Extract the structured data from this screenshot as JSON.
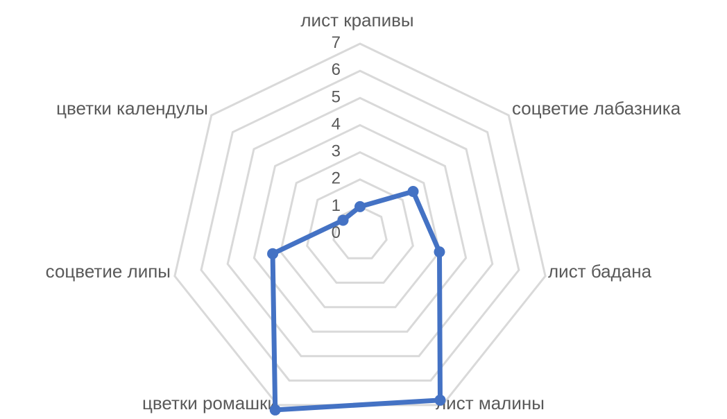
{
  "chart_data": {
    "type": "radar",
    "title": "",
    "categories": [
      "лист крапивы",
      "соцветие лабазника",
      "лист бадана",
      "лист малины",
      "цветки ромашки",
      "соцветие липы",
      "цветки календулы"
    ],
    "series": [
      {
        "values": [
          1,
          2.5,
          3,
          6.8,
          7.2,
          3.3,
          0.8
        ]
      }
    ],
    "ticks": [
      "0",
      "1",
      "2",
      "3",
      "4",
      "5",
      "6",
      "7"
    ],
    "rlim": [
      0,
      7
    ],
    "grid": true,
    "legend": "none",
    "colors": {
      "series": "#4472C4",
      "grid": "#D9D9D9",
      "text": "#595959"
    }
  }
}
